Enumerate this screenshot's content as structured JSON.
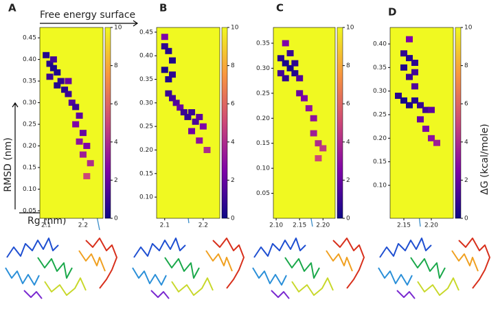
{
  "chart_data": [
    {
      "type": "heatmap",
      "panel_label": "A",
      "title": "Free energy surface",
      "xlabel": "Rg (nm)",
      "ylabel": "RMSD (nm)",
      "x": [
        2.1,
        2.11,
        2.12,
        2.13,
        2.11,
        2.12,
        2.14,
        2.15,
        2.13,
        2.16,
        2.17,
        2.16,
        2.18,
        2.19,
        2.18,
        2.2,
        2.19,
        2.21,
        2.2,
        2.22,
        2.21
      ],
      "y": [
        0.41,
        0.39,
        0.38,
        0.37,
        0.36,
        0.4,
        0.35,
        0.33,
        0.34,
        0.32,
        0.3,
        0.35,
        0.29,
        0.27,
        0.25,
        0.23,
        0.21,
        0.2,
        0.18,
        0.16,
        0.13
      ],
      "values": [
        0.5,
        0.5,
        0.3,
        0.4,
        1.0,
        1.2,
        0.8,
        0.6,
        0.5,
        1.0,
        1.5,
        2.0,
        1.0,
        1.8,
        2.5,
        2.0,
        3.0,
        2.5,
        3.5,
        4.0,
        5.0
      ],
      "xlim": [
        2.083,
        2.254
      ],
      "ylim": [
        0.0325,
        0.474
      ],
      "xticks": [
        2.1,
        2.2
      ],
      "yticks": [
        0.05,
        {
          "value": 0.1,
          "label": "0.10"
        },
        0.15,
        {
          "value": 0.2,
          "label": "0.20"
        },
        0.25,
        {
          "value": 0.3,
          "label": "0.30"
        },
        0.35,
        {
          "value": 0.4,
          "label": "0.40"
        },
        0.45
      ],
      "clim": [
        0,
        10
      ],
      "cticks": [
        0,
        2,
        4,
        6,
        8,
        10
      ]
    },
    {
      "type": "heatmap",
      "panel_label": "B",
      "x": [
        2.1,
        2.11,
        2.12,
        2.1,
        2.11,
        2.12,
        2.11,
        2.12,
        2.13,
        2.14,
        2.15,
        2.16,
        2.17,
        2.18,
        2.19,
        2.2,
        2.17,
        2.19,
        2.21,
        2.1
      ],
      "y": [
        0.42,
        0.41,
        0.39,
        0.37,
        0.35,
        0.36,
        0.32,
        0.31,
        0.3,
        0.29,
        0.28,
        0.27,
        0.28,
        0.26,
        0.27,
        0.25,
        0.24,
        0.22,
        0.2,
        0.44
      ],
      "values": [
        0.8,
        0.5,
        0.4,
        0.3,
        0.5,
        0.7,
        1.0,
        1.2,
        1.5,
        2.0,
        1.0,
        0.8,
        1.0,
        1.4,
        1.8,
        2.5,
        2.2,
        3.0,
        4.0,
        2.5
      ],
      "xlim": [
        2.079,
        2.243
      ],
      "ylim": [
        0.055,
        0.46
      ],
      "xticks": [
        2.1,
        2.2
      ],
      "yticks": [
        {
          "value": 0.1,
          "label": "0.10"
        },
        0.15,
        {
          "value": 0.2,
          "label": "0.20"
        },
        0.25,
        {
          "value": 0.3,
          "label": "0.30"
        },
        0.35,
        {
          "value": 0.4,
          "label": "0.40"
        },
        0.45
      ],
      "clim": [
        0,
        10
      ],
      "cticks": [
        0,
        2,
        4,
        6,
        8,
        10
      ]
    },
    {
      "type": "heatmap",
      "panel_label": "C",
      "x": [
        2.11,
        2.12,
        2.13,
        2.14,
        2.12,
        2.13,
        2.14,
        2.11,
        2.15,
        2.12,
        2.15,
        2.16,
        2.17,
        2.18,
        2.18,
        2.19,
        2.2,
        2.19
      ],
      "y": [
        0.32,
        0.31,
        0.3,
        0.29,
        0.28,
        0.33,
        0.31,
        0.29,
        0.28,
        0.35,
        0.25,
        0.24,
        0.22,
        0.2,
        0.17,
        0.15,
        0.14,
        0.12
      ],
      "values": [
        0.6,
        0.3,
        0.2,
        0.5,
        0.8,
        1.0,
        0.7,
        1.2,
        1.5,
        2.5,
        2.0,
        2.5,
        3.0,
        3.0,
        3.5,
        4.0,
        4.5,
        5.0
      ],
      "xlim": [
        2.094,
        2.226
      ],
      "ylim": [
        0.0,
        0.3815
      ],
      "xticks": [
        {
          "value": 2.1,
          "label": "2.10"
        },
        2.15,
        {
          "value": 2.2,
          "label": "2.20"
        }
      ],
      "yticks": [
        0.05,
        {
          "value": 0.1,
          "label": "0.10"
        },
        0.15,
        {
          "value": 0.2,
          "label": "0.20"
        },
        0.25,
        {
          "value": 0.3,
          "label": "0.30"
        },
        0.35
      ],
      "clim": [
        0,
        10
      ],
      "cticks": [
        0,
        2,
        4,
        6,
        8,
        10
      ]
    },
    {
      "type": "heatmap",
      "panel_label": "D",
      "colorbar_label": "ΔG (kcal/mole)",
      "x": [
        2.15,
        2.16,
        2.17,
        2.15,
        2.16,
        2.17,
        2.14,
        2.15,
        2.16,
        2.17,
        2.18,
        2.19,
        2.2,
        2.18,
        2.19,
        2.2,
        2.21,
        2.16,
        2.17
      ],
      "y": [
        0.38,
        0.37,
        0.36,
        0.35,
        0.33,
        0.34,
        0.29,
        0.28,
        0.27,
        0.28,
        0.27,
        0.26,
        0.26,
        0.24,
        0.22,
        0.2,
        0.19,
        0.41,
        0.31
      ],
      "values": [
        0.8,
        0.5,
        0.7,
        0.4,
        1.0,
        1.2,
        0.6,
        0.2,
        0.3,
        0.5,
        0.9,
        1.2,
        1.8,
        2.0,
        2.5,
        3.0,
        3.5,
        2.5,
        1.5
      ],
      "xlim": [
        2.125,
        2.24
      ],
      "ylim": [
        0.03,
        0.435
      ],
      "xticks": [
        2.15,
        {
          "value": 2.2,
          "label": "2.20"
        }
      ],
      "yticks": [
        {
          "value": 0.1,
          "label": "0.10"
        },
        0.15,
        {
          "value": 0.2,
          "label": "0.20"
        },
        0.25,
        {
          "value": 0.3,
          "label": "0.30"
        },
        0.35,
        {
          "value": 0.4,
          "label": "0.40"
        }
      ],
      "clim": [
        0,
        10
      ],
      "cticks": [
        0,
        2,
        4,
        6,
        8,
        10
      ]
    }
  ]
}
